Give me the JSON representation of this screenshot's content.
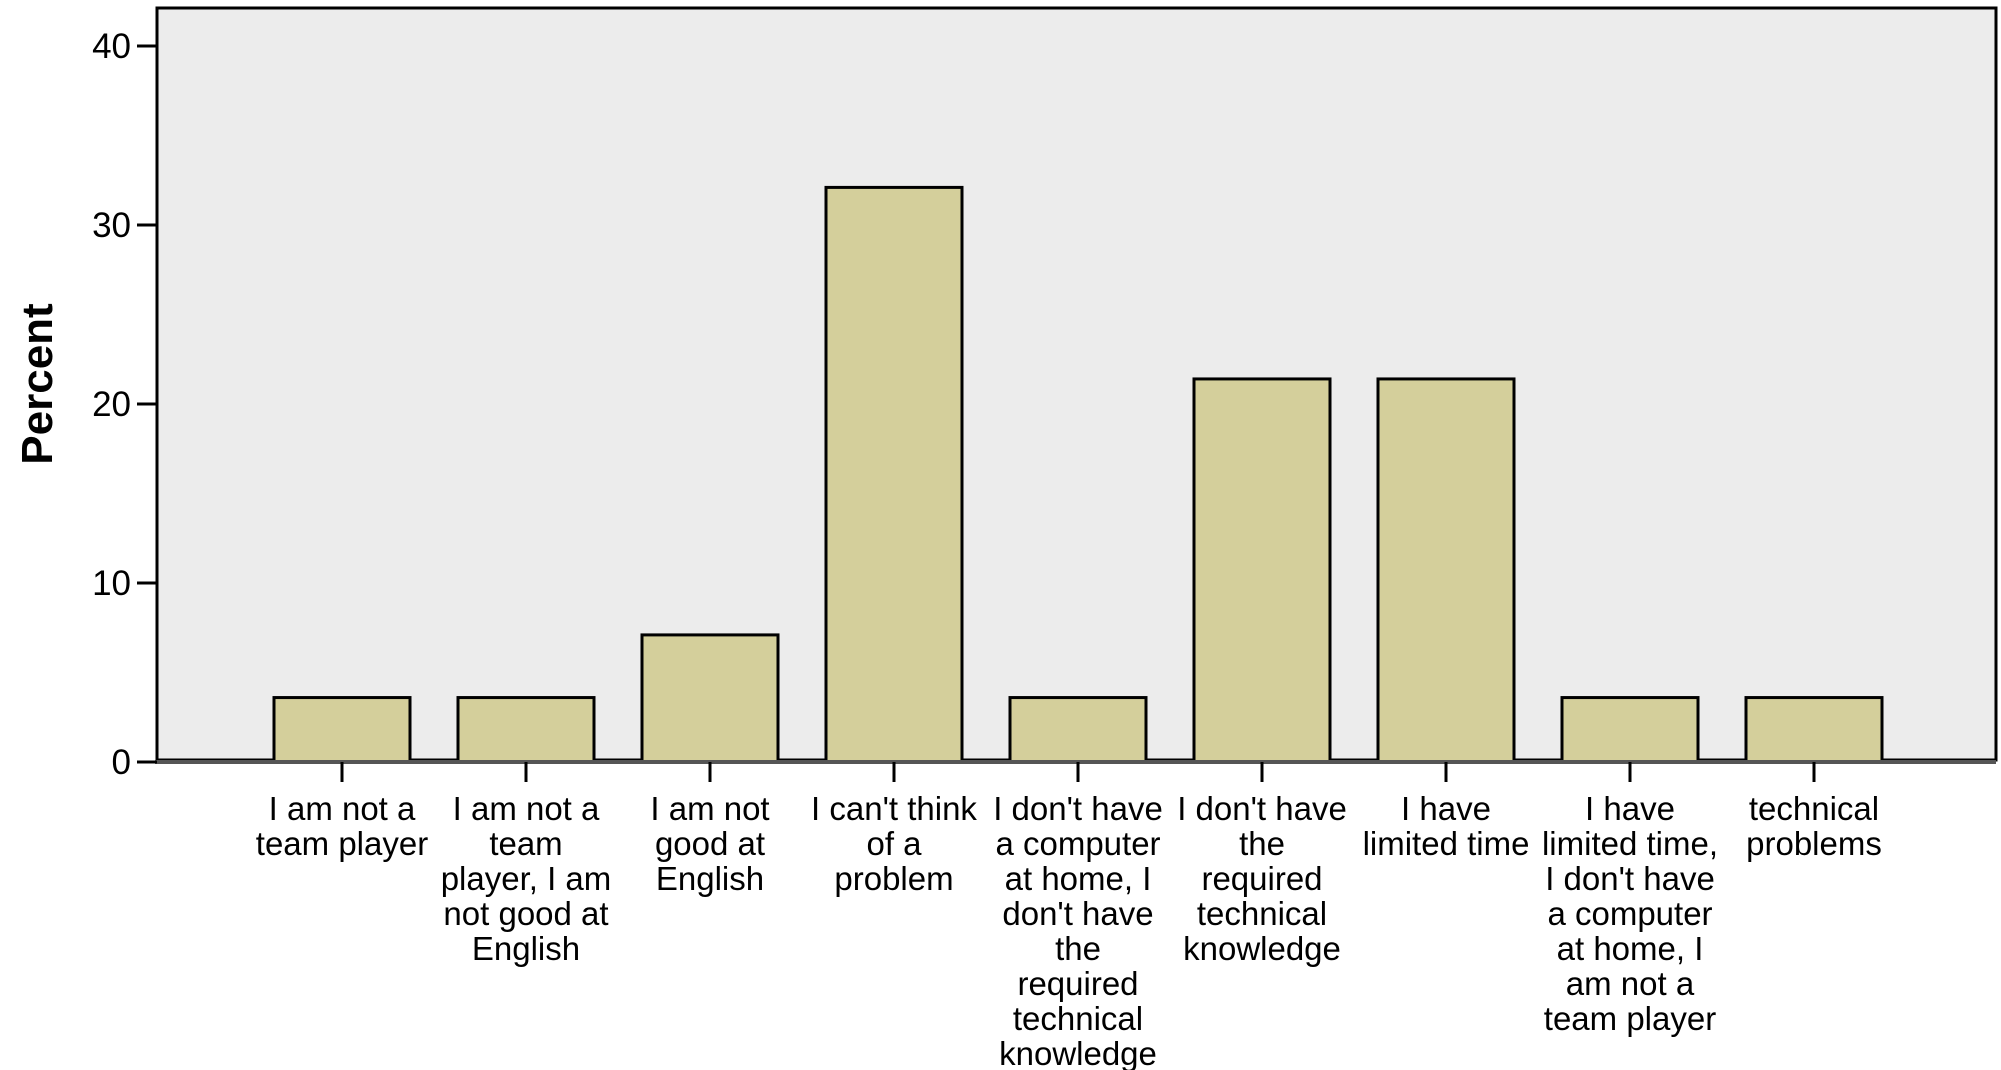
{
  "chart_data": {
    "type": "bar",
    "title": "",
    "xlabel": "",
    "ylabel": "Percent",
    "ylim": [
      0,
      42
    ],
    "yticks": [
      0,
      10,
      20,
      30,
      40
    ],
    "grid": false,
    "categories": [
      [
        "I am not a",
        "team player"
      ],
      [
        "I am not a",
        "team",
        "player, I am",
        "not good at",
        "English"
      ],
      [
        "I am not",
        "good at",
        "English"
      ],
      [
        "I can't think",
        "of a",
        "problem"
      ],
      [
        "I don't have",
        "a computer",
        "at home, I",
        "don't have",
        "the",
        "required",
        "technical",
        "knowledge"
      ],
      [
        "I don't have",
        "the",
        "required",
        "technical",
        "knowledge"
      ],
      [
        "I have",
        "limited time"
      ],
      [
        "I have",
        "limited time,",
        "I don't have",
        "a computer",
        "at home, I",
        "am not a",
        "team player"
      ],
      [
        "technical",
        "problems"
      ]
    ],
    "values": [
      3.6,
      3.6,
      7.1,
      32.1,
      3.6,
      21.4,
      21.4,
      3.6,
      3.6
    ],
    "colors": {
      "bar_fill": "#d4cf9b",
      "bar_stroke": "#000000",
      "plot_background": "#ececec",
      "page_background": "#ffffff"
    }
  }
}
